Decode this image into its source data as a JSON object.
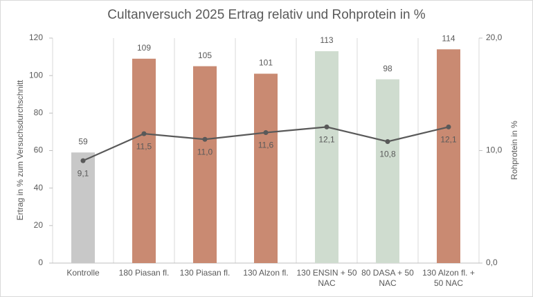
{
  "chart_data": {
    "type": "bar",
    "title": "Cultanversuch 2025 Ertrag relativ und Rohprotein in %",
    "categories": [
      "Kontrolle",
      "180 Piasan fl.",
      "130 Piasan fl.",
      "130 Alzon fl.",
      "130 ENSIN + 50 NAC",
      "80 DASA + 50 NAC",
      "130 Alzon fl. + 50 NAC"
    ],
    "y_label": "Ertrag in % zum Versuchsdurchschnitt",
    "y2_label": "Rohprotein in %",
    "ylim": [
      0,
      120
    ],
    "yticks": [
      0,
      20,
      40,
      60,
      80,
      100,
      120
    ],
    "y2lim": [
      0,
      20
    ],
    "y2ticks": [
      {
        "value": 0,
        "label": "0,0"
      },
      {
        "value": 10,
        "label": "10,0"
      },
      {
        "value": 20,
        "label": "20,0"
      }
    ],
    "series": [
      {
        "type": "bar",
        "values": [
          59,
          109,
          105,
          101,
          113,
          98,
          114
        ],
        "colors": [
          "#c8c8c8",
          "#c98a72",
          "#c98a72",
          "#c98a72",
          "#cfdccf",
          "#cfdccf",
          "#c98a72"
        ]
      },
      {
        "type": "line",
        "axis": "y2",
        "color": "#595959",
        "values": [
          9.1,
          11.5,
          11.0,
          11.6,
          12.1,
          10.8,
          12.1
        ],
        "value_labels": [
          "9,1",
          "11,5",
          "11,0",
          "11,6",
          "12,1",
          "10,8",
          "12,1"
        ]
      }
    ]
  }
}
